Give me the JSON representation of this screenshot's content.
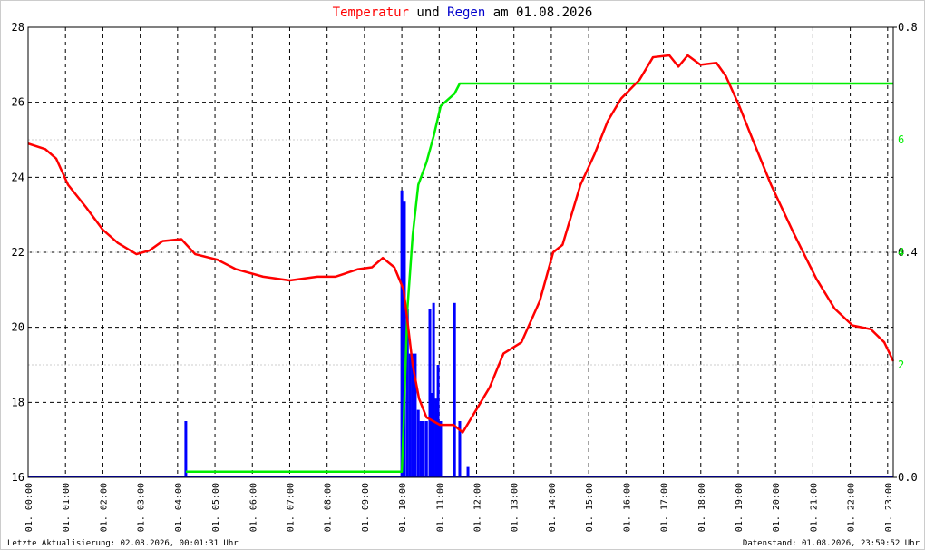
{
  "chart_data": {
    "type": "line",
    "title_connector": "und",
    "title_suffix": "am 01.08.2026",
    "footer_left": "Letzte Aktualisierung: 02.08.2026, 00:01:31 Uhr",
    "footer_right": "Datenstand: 01.08.2026, 23:59:52 Uhr",
    "grid": true,
    "xlim": [
      0,
      23.15
    ],
    "xticks": [
      {
        "value": 0,
        "label": "01. 00:00"
      },
      {
        "value": 1,
        "label": "01. 01:00"
      },
      {
        "value": 2,
        "label": "01. 02:00"
      },
      {
        "value": 3,
        "label": "01. 03:00"
      },
      {
        "value": 4,
        "label": "01. 04:00"
      },
      {
        "value": 5,
        "label": "01. 05:00"
      },
      {
        "value": 6,
        "label": "01. 06:00"
      },
      {
        "value": 7,
        "label": "01. 07:00"
      },
      {
        "value": 8,
        "label": "01. 08:00"
      },
      {
        "value": 9,
        "label": "01. 09:00"
      },
      {
        "value": 10,
        "label": "01. 10:00"
      },
      {
        "value": 11,
        "label": "01. 11:00"
      },
      {
        "value": 12,
        "label": "01. 12:00"
      },
      {
        "value": 13,
        "label": "01. 13:00"
      },
      {
        "value": 14,
        "label": "01. 14:00"
      },
      {
        "value": 15,
        "label": "01. 15:00"
      },
      {
        "value": 16,
        "label": "01. 16:00"
      },
      {
        "value": 17,
        "label": "01. 17:00"
      },
      {
        "value": 18,
        "label": "01. 18:00"
      },
      {
        "value": 19,
        "label": "01. 19:00"
      },
      {
        "value": 20,
        "label": "01. 20:00"
      },
      {
        "value": 21,
        "label": "01. 21:00"
      },
      {
        "value": 22,
        "label": "01. 22:00"
      },
      {
        "value": 23,
        "label": "01. 23:00"
      }
    ],
    "ylim": [
      16,
      28
    ],
    "yticks": [
      16,
      18,
      20,
      22,
      24,
      26,
      28
    ],
    "y2lim": [
      0,
      0.8
    ],
    "y2ticks": [
      {
        "value": 0,
        "label": "0.0"
      },
      0.4,
      0.8
    ],
    "y3lim": [
      0,
      8
    ],
    "y3ticks": [
      2,
      4,
      6
    ],
    "series": [
      {
        "name": "Temperatur",
        "color": "#ff0000",
        "kind": "line",
        "x": [
          0,
          0.46,
          0.75,
          1.07,
          1.55,
          2.0,
          2.4,
          2.9,
          3.25,
          3.6,
          4.1,
          4.47,
          5.07,
          5.56,
          6.29,
          7.0,
          7.74,
          8.23,
          8.83,
          9.2,
          9.49,
          9.8,
          10.05,
          10.17,
          10.29,
          10.46,
          10.66,
          11.02,
          11.38,
          11.63,
          11.87,
          12.35,
          12.72,
          13.2,
          13.69,
          14.05,
          14.3,
          14.78,
          15.15,
          15.51,
          15.87,
          16.36,
          16.72,
          17.16,
          17.4,
          17.65,
          17.99,
          18.42,
          18.67,
          19.03,
          19.39,
          19.88,
          20.49,
          21.09,
          21.58,
          22.06,
          22.55,
          22.91,
          23.15
        ],
        "values": [
          24.9,
          24.75,
          24.5,
          23.8,
          23.2,
          22.6,
          22.25,
          21.95,
          22.05,
          22.3,
          22.35,
          21.95,
          21.8,
          21.55,
          21.35,
          21.25,
          21.35,
          21.35,
          21.55,
          21.6,
          21.85,
          21.6,
          21.0,
          20.0,
          19.0,
          18.1,
          17.6,
          17.4,
          17.4,
          17.2,
          17.6,
          18.4,
          19.3,
          19.6,
          20.7,
          22.0,
          22.2,
          23.8,
          24.6,
          25.5,
          26.1,
          26.6,
          27.2,
          27.25,
          26.95,
          27.25,
          27.0,
          27.05,
          26.7,
          25.9,
          25.0,
          23.8,
          22.5,
          21.3,
          20.5,
          20.05,
          19.95,
          19.6,
          19.1
        ]
      },
      {
        "name": "Regen",
        "color": "#0000ff",
        "kind": "bar",
        "axis": "y2",
        "x": [
          4.22,
          10.0,
          10.07,
          10.15,
          10.22,
          10.29,
          10.36,
          10.44,
          10.51,
          10.58,
          10.66,
          10.75,
          10.8,
          10.85,
          10.92,
          10.97,
          11.04,
          11.41,
          11.55,
          11.77
        ],
        "values": [
          0.1,
          0.51,
          0.49,
          0.3,
          0.22,
          0.22,
          0.22,
          0.12,
          0.1,
          0.1,
          0.1,
          0.3,
          0.15,
          0.31,
          0.14,
          0.2,
          0.1,
          0.31,
          0.1,
          0.02
        ]
      },
      {
        "color": "#00ee00",
        "kind": "line",
        "axis": "y3",
        "x": [
          4.22,
          10.0,
          10.05,
          10.15,
          10.29,
          10.44,
          10.66,
          10.85,
          10.97,
          11.04,
          11.41,
          11.55,
          23.15
        ],
        "values": [
          0.1,
          0.1,
          1.0,
          3.0,
          4.3,
          5.2,
          5.6,
          6.06,
          6.4,
          6.6,
          6.82,
          7.0,
          7.0
        ]
      }
    ]
  }
}
